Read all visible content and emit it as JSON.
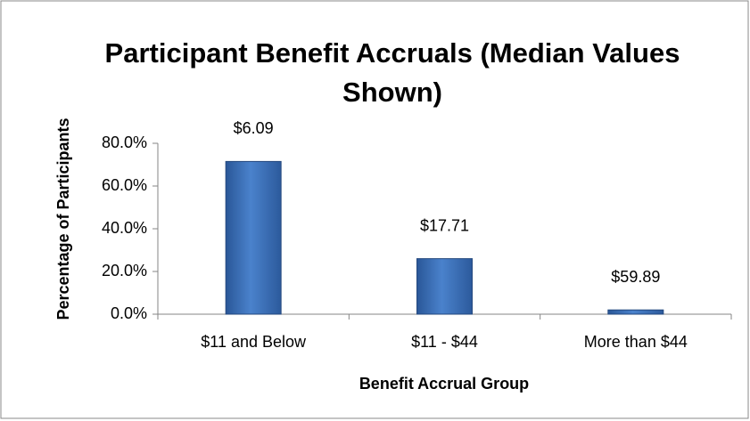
{
  "chart_data": {
    "type": "bar",
    "title": "Participant Benefit Accruals (Median Values Shown)",
    "categories": [
      "$11 and Below",
      "$11 - $44",
      "More than $44"
    ],
    "values": [
      71.5,
      26,
      2
    ],
    "annotations": [
      "$6.09",
      "$17.71",
      "$59.89"
    ],
    "color": "#3b6fb6",
    "xlabel": "Benefit Accrual Group",
    "ylabel": "Percentage of Participants",
    "ylim": [
      0,
      80
    ],
    "yticks": [
      {
        "value": 0,
        "label": "0.0%"
      },
      {
        "value": 20,
        "label": "20.0%"
      },
      {
        "value": 40,
        "label": "40.0%"
      },
      {
        "value": 60,
        "label": "60.0%"
      },
      {
        "value": 80,
        "label": "80.0%"
      }
    ],
    "grid": false
  }
}
